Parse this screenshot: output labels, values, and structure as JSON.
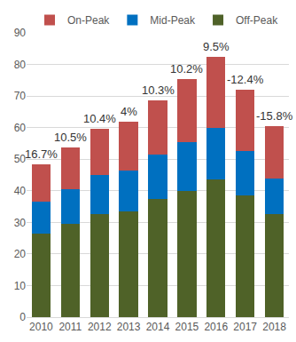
{
  "chart_data": {
    "type": "bar",
    "stacked": true,
    "categories": [
      "2010",
      "2011",
      "2012",
      "2013",
      "2014",
      "2015",
      "2016",
      "2017",
      "2018"
    ],
    "series": [
      {
        "name": "Off-Peak",
        "color": "#4f6228",
        "values": [
          26.5,
          29.5,
          32.5,
          33.5,
          37.5,
          40,
          43.5,
          38.5,
          32.5
        ]
      },
      {
        "name": "Mid-Peak",
        "color": "#0070c0",
        "values": [
          10,
          11,
          12.5,
          13,
          14,
          15.5,
          16.5,
          14,
          11.5
        ]
      },
      {
        "name": "On-Peak",
        "color": "#c0504d",
        "values": [
          12,
          13.3,
          14.5,
          15.3,
          17,
          20,
          22.5,
          19.5,
          16.5
        ]
      }
    ],
    "annotations": [
      "16.7%",
      "10.5%",
      "10.4%",
      "4%",
      "10.3%",
      "10.2%",
      "9.5%",
      "-12.4%",
      "-15.8%"
    ],
    "ylim": [
      0,
      90
    ],
    "yticks": [
      0,
      10,
      20,
      30,
      40,
      50,
      60,
      70,
      80,
      90
    ],
    "grid": true,
    "legend": "top"
  }
}
